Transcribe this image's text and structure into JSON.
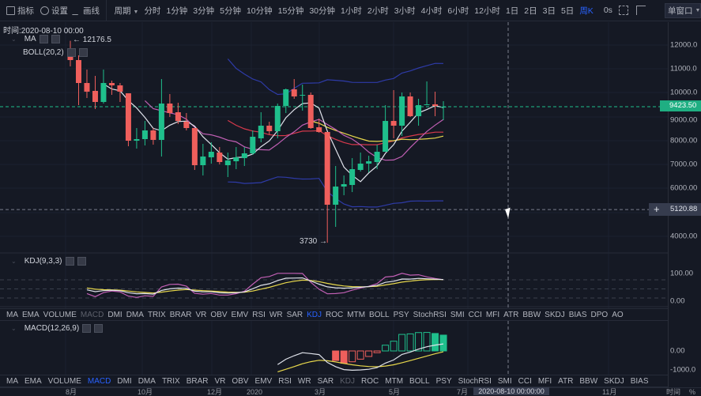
{
  "toolbar": {
    "indicators_label": "指标",
    "settings_label": "设置",
    "draw_label": "画线",
    "period_label": "周期",
    "periods": [
      "分时",
      "1分钟",
      "3分钟",
      "5分钟",
      "10分钟",
      "15分钟",
      "30分钟",
      "1小时",
      "2小时",
      "3小时",
      "4小时",
      "6小时",
      "12小时",
      "1日",
      "2日",
      "3日",
      "5日",
      "周K"
    ],
    "active_period": "周K",
    "countdown": "0s",
    "window_mode": "单窗口"
  },
  "main_panel": {
    "time_info": "时间:2020-08-10 00:00",
    "legends": [
      "MA",
      "BOLL(20,2)"
    ],
    "high_marker": "← 12176.5",
    "low_marker": "3730 →",
    "price_axis": [
      "12000.0",
      "11000.0",
      "10000.0",
      "9000.00",
      "8000.00",
      "7000.00",
      "6000.00",
      "4000.00"
    ],
    "last_price": "9423.50",
    "crosshair_price": "5120.88"
  },
  "kdj_panel": {
    "title": "KDJ(9,3,3)",
    "axis": [
      "100.00",
      "0.00"
    ]
  },
  "macd_panel": {
    "title": "MACD(12,26,9)",
    "axis": [
      "0.00",
      "-1000.0"
    ]
  },
  "indicator_tabs_1": {
    "items": [
      "MA",
      "EMA",
      "VOLUME",
      "MACD",
      "DMI",
      "DMA",
      "TRIX",
      "BRAR",
      "VR",
      "OBV",
      "EMV",
      "RSI",
      "WR",
      "SAR",
      "KDJ",
      "ROC",
      "MTM",
      "BOLL",
      "PSY",
      "StochRSI",
      "SMI",
      "CCI",
      "MFI",
      "ATR",
      "BBW",
      "SKDJ",
      "BIAS",
      "DPO",
      "AO"
    ],
    "active": "KDJ",
    "dim": "MACD"
  },
  "indicator_tabs_2": {
    "items": [
      "MA",
      "EMA",
      "VOLUME",
      "MACD",
      "DMI",
      "DMA",
      "TRIX",
      "BRAR",
      "VR",
      "OBV",
      "EMV",
      "RSI",
      "WR",
      "SAR",
      "KDJ",
      "ROC",
      "MTM",
      "BOLL",
      "PSY",
      "StochRSI",
      "SMI",
      "CCI",
      "MFI",
      "ATR",
      "BBW",
      "SKDJ",
      "BIAS"
    ],
    "active": "MACD",
    "dim": "KDJ"
  },
  "time_axis": {
    "labels": [
      "8月",
      "10月",
      "12月",
      "2020",
      "3月",
      "5月",
      "7月",
      "11月",
      "时间",
      "%"
    ],
    "crosshair_time": "2020-08-10 00:00:00"
  },
  "colors": {
    "up": "#1fbf8c",
    "down": "#ef5f5c",
    "accent": "#2962ff",
    "ma5": "#e0e3eb",
    "ma10": "#c15fb4",
    "ma20": "#d8394c",
    "ma30": "#e8d84c",
    "boll": "#2e3ba8"
  },
  "chart_data": {
    "type": "candlestick",
    "price_range": [
      4000,
      12000
    ],
    "candles_ohlc_note": "each candle is [open, close, high, low]",
    "candles": [
      [
        11570,
        11372,
        12176.5,
        11107
      ],
      [
        11372,
        10413,
        11570,
        9487
      ],
      [
        10413,
        10050,
        10975,
        9785
      ],
      [
        10083,
        9620,
        10711,
        9322
      ],
      [
        9620,
        10413,
        10975,
        9554
      ],
      [
        10413,
        10314,
        10512,
        9917
      ],
      [
        10314,
        10050,
        10413,
        9620
      ],
      [
        9983,
        8000,
        9983,
        7768
      ],
      [
        8000,
        8066,
        8529,
        7669
      ],
      [
        8066,
        8430,
        8826,
        7801
      ],
      [
        8430,
        8033,
        8529,
        7834
      ],
      [
        8033,
        9554,
        10578,
        7338
      ],
      [
        9554,
        9157,
        9950,
        8992
      ],
      [
        9190,
        8826,
        9587,
        8694
      ],
      [
        8793,
        8529,
        9157,
        8430
      ],
      [
        8529,
        6975,
        8529,
        6777
      ],
      [
        6975,
        7338,
        7868,
        6545
      ],
      [
        7305,
        7537,
        7934,
        7041
      ],
      [
        7504,
        7107,
        7735,
        7008
      ],
      [
        6975,
        7173,
        7504,
        6479
      ],
      [
        7140,
        7305,
        7735,
        6810
      ],
      [
        7272,
        7471,
        7735,
        6942
      ],
      [
        7471,
        8165,
        8430,
        7405
      ],
      [
        8099,
        8628,
        9190,
        7934
      ],
      [
        8628,
        8397,
        8793,
        8264
      ],
      [
        8397,
        9454,
        9554,
        8099
      ],
      [
        9454,
        10149,
        10182,
        9157
      ],
      [
        10149,
        9851,
        10578,
        9752
      ],
      [
        9884,
        9917,
        10347,
        9256
      ],
      [
        9917,
        8529,
        10016,
        8496
      ],
      [
        8562,
        8364,
        8925,
        8331
      ],
      [
        8364,
        5322,
        8364,
        3730
      ],
      [
        5322,
        6082,
        6942,
        4396
      ],
      [
        6082,
        6182,
        6545,
        5719
      ],
      [
        6148,
        6810,
        7272,
        5851
      ],
      [
        6777,
        7041,
        7504,
        6711
      ],
      [
        7041,
        7140,
        7372,
        6677
      ],
      [
        7107,
        7537,
        7834,
        6810
      ],
      [
        7537,
        8826,
        9487,
        7537
      ],
      [
        8826,
        8628,
        10116,
        8099
      ],
      [
        8628,
        9851,
        10016,
        8198
      ],
      [
        9851,
        9025,
        10016,
        8992
      ],
      [
        9025,
        9487,
        9752,
        8628
      ],
      [
        9487,
        9520,
        10479,
        9487
      ],
      [
        9520,
        9454,
        10050,
        9025
      ],
      [
        9388,
        9423.5,
        9653,
        8859
      ]
    ],
    "last_price": 9423.5,
    "crosshair_price": 5120.88
  }
}
